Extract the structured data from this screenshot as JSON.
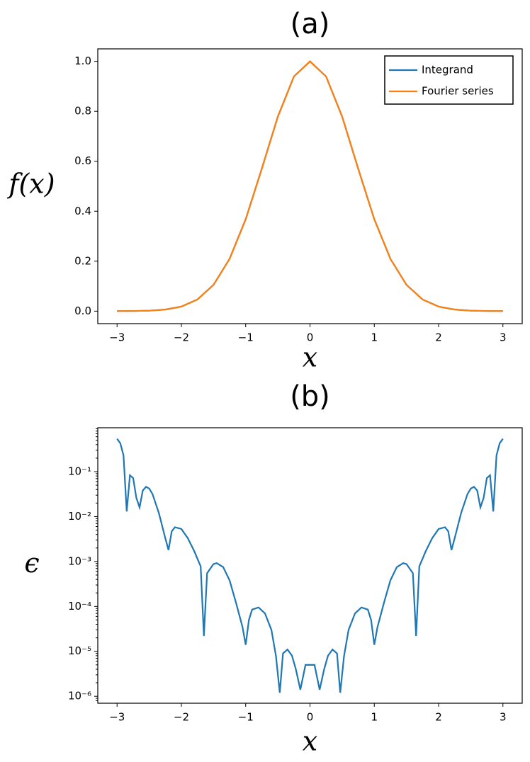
{
  "chart_data": [
    {
      "type": "line",
      "title": "(a)",
      "xlabel": "x",
      "ylabel": "f(x)",
      "x": [
        -3,
        -2.75,
        -2.5,
        -2.25,
        -2,
        -1.75,
        -1.5,
        -1.25,
        -1,
        -0.75,
        -0.5,
        -0.25,
        0,
        0.25,
        0.5,
        0.75,
        1,
        1.25,
        1.5,
        1.75,
        2,
        2.25,
        2.5,
        2.75,
        3
      ],
      "series": [
        {
          "name": "Integrand",
          "color": "#1f77b4",
          "values": [
            0.0001,
            0.0005,
            0.0019,
            0.0063,
            0.0183,
            0.0468,
            0.1054,
            0.2096,
            0.3679,
            0.5698,
            0.7788,
            0.9394,
            1,
            0.9394,
            0.7788,
            0.5698,
            0.3679,
            0.2096,
            0.1054,
            0.0468,
            0.0183,
            0.0063,
            0.0019,
            0.0005,
            0.0001
          ]
        },
        {
          "name": "Fourier series",
          "color": "#ff7f0e",
          "values": [
            0.0001,
            0.0005,
            0.0019,
            0.0063,
            0.0183,
            0.0468,
            0.1054,
            0.2096,
            0.3679,
            0.5698,
            0.7788,
            0.9394,
            1,
            0.9394,
            0.7788,
            0.5698,
            0.3679,
            0.2096,
            0.1054,
            0.0468,
            0.0183,
            0.0063,
            0.0019,
            0.0005,
            0.0001
          ]
        }
      ],
      "xlim": [
        -3.3,
        3.3
      ],
      "ylim": [
        -0.05,
        1.05
      ],
      "xticks": [
        {
          "value": -3,
          "label": "−3"
        },
        {
          "value": -2,
          "label": "−2"
        },
        {
          "value": -1,
          "label": "−1"
        },
        0,
        1,
        2,
        3
      ],
      "yticks": [
        {
          "value": 0,
          "label": "0.0"
        },
        0.2,
        0.4,
        0.6,
        0.8,
        {
          "value": 1,
          "label": "1.0"
        }
      ],
      "legend": "upper right"
    },
    {
      "type": "line",
      "title": "(b)",
      "xlabel": "x",
      "ylabel": "ϵ",
      "yscale": "log",
      "x": [
        -3,
        -2.95,
        -2.9,
        -2.85,
        -2.8,
        -2.75,
        -2.7,
        -2.65,
        -2.6,
        -2.55,
        -2.5,
        -2.45,
        -2.35,
        -2.25,
        -2.2,
        -2.15,
        -2.1,
        -2,
        -1.9,
        -1.8,
        -1.7,
        -1.65,
        -1.6,
        -1.5,
        -1.45,
        -1.35,
        -1.25,
        -1.15,
        -1.05,
        -1,
        -0.95,
        -0.9,
        -0.8,
        -0.7,
        -0.6,
        -0.53,
        -0.47,
        -0.42,
        -0.35,
        -0.28,
        -0.22,
        -0.15,
        -0.07,
        0,
        0.07,
        0.15,
        0.22,
        0.28,
        0.35,
        0.42,
        0.47,
        0.53,
        0.6,
        0.7,
        0.8,
        0.9,
        0.95,
        1,
        1.05,
        1.15,
        1.25,
        1.35,
        1.45,
        1.5,
        1.6,
        1.65,
        1.7,
        1.8,
        1.9,
        2,
        2.1,
        2.15,
        2.2,
        2.25,
        2.35,
        2.45,
        2.5,
        2.55,
        2.6,
        2.65,
        2.7,
        2.75,
        2.8,
        2.85,
        2.9,
        2.95,
        3
      ],
      "series": [
        {
          "color": "#1f77b4",
          "values": [
            0.54,
            0.43,
            0.23,
            0.013,
            0.083,
            0.072,
            0.026,
            0.016,
            0.038,
            0.046,
            0.042,
            0.032,
            0.012,
            0.0033,
            0.0018,
            0.0047,
            0.0058,
            0.0053,
            0.0033,
            0.0017,
            0.00078,
            2.2e-05,
            0.00055,
            0.00088,
            0.00092,
            0.00075,
            0.00038,
            0.00012,
            3.5e-05,
            1.4e-05,
            5e-05,
            8.5e-05,
            9.5e-05,
            7e-05,
            3e-05,
            8e-06,
            1.2e-06,
            9e-06,
            1.1e-05,
            8e-06,
            4e-06,
            1.4e-06,
            5e-06,
            5e-06,
            5e-06,
            1.4e-06,
            4e-06,
            8e-06,
            1.1e-05,
            9e-06,
            1.2e-06,
            8e-06,
            3e-05,
            7e-05,
            9.5e-05,
            8.5e-05,
            5e-05,
            1.4e-05,
            3.5e-05,
            0.00012,
            0.00038,
            0.00075,
            0.00092,
            0.00088,
            0.00055,
            2.2e-05,
            0.00078,
            0.0017,
            0.0033,
            0.0053,
            0.0058,
            0.0047,
            0.0018,
            0.0033,
            0.012,
            0.032,
            0.042,
            0.046,
            0.038,
            0.016,
            0.026,
            0.072,
            0.083,
            0.013,
            0.23,
            0.43,
            0.54
          ]
        }
      ],
      "xlim": [
        -3.3,
        3.3
      ],
      "ylim": [
        7e-07,
        0.95
      ],
      "xticks": [
        {
          "value": -3,
          "label": "−3"
        },
        {
          "value": -2,
          "label": "−2"
        },
        {
          "value": -1,
          "label": "−1"
        },
        0,
        1,
        2,
        3
      ],
      "yticks": [
        {
          "value": 1e-06,
          "label": "10⁻⁶"
        },
        {
          "value": 1e-05,
          "label": "10⁻⁵"
        },
        {
          "value": 0.0001,
          "label": "10⁻⁴"
        },
        {
          "value": 0.001,
          "label": "10⁻³"
        },
        {
          "value": 0.01,
          "label": "10⁻²"
        },
        {
          "value": 0.1,
          "label": "10⁻¹"
        }
      ]
    }
  ]
}
